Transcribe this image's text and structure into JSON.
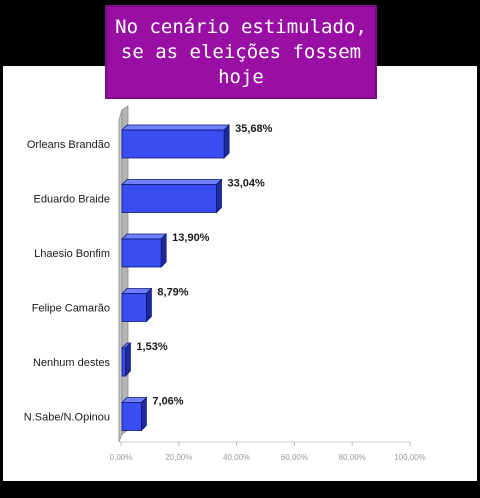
{
  "title": "No cenário estimulado, se as eleições fossem hoje",
  "chart_data": {
    "type": "bar",
    "orientation": "horizontal",
    "categories": [
      "Orleans Brandão",
      "Eduardo Braide",
      "Lhaesio Bonfim",
      "Felipe Camarão",
      "Nenhum destes",
      "N.Sabe/N.Opinou"
    ],
    "values": [
      35.68,
      33.04,
      13.9,
      8.79,
      1.53,
      7.06
    ],
    "value_labels": [
      "35,68%",
      "33,04%",
      "13,90%",
      "8,79%",
      "1,53%",
      "7,06%"
    ],
    "xticks": [
      0,
      20,
      40,
      60,
      80,
      100
    ],
    "xtick_labels": [
      "0,00%",
      "20,00%",
      "40,00%",
      "60,00%",
      "80,00%",
      "100,00%"
    ],
    "xlim": [
      0,
      100
    ],
    "grid": false,
    "legend": "none",
    "colors": {
      "bar_front": "#3a4df0",
      "bar_top": "#6f80ff",
      "bar_side": "#1c2a9e",
      "bar_edge": "#101a70",
      "wall": "#c4c4c4",
      "title_bg": "#9a0fa3"
    }
  }
}
